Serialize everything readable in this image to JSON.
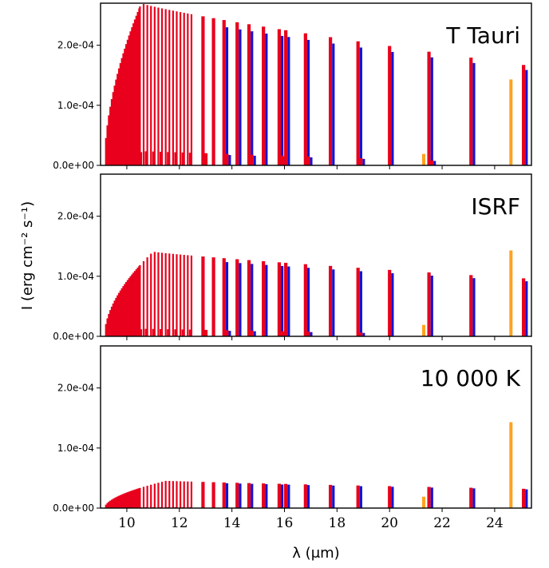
{
  "chart_data": {
    "type": "bar",
    "ylabel": "I (erg cm⁻² s⁻¹)",
    "xlabel": "λ (μm)",
    "xlim": [
      9.0,
      25.4
    ],
    "ylim": [
      0,
      0.00027
    ],
    "xticks": [
      10,
      12,
      14,
      16,
      18,
      20,
      22,
      24
    ],
    "yticks": [
      0,
      0.0001,
      0.0002
    ],
    "ytick_labels": [
      "0.0e+00",
      "1.0e-04",
      "2.0e-04"
    ],
    "series_colors": {
      "red": "#e8001c",
      "blue": "#1414d2",
      "orange": "#ffa21f"
    },
    "panels": [
      {
        "label": "T Tauri",
        "envelope": {
          "peak_x": 10.55,
          "peak": 0.00027,
          "end_x": 25.3,
          "end": 0.000166,
          "start_x": 9.15
        },
        "low": {
          "peak": 2.35e-05,
          "end_x": 24.5,
          "end": 4e-06,
          "span": [
            9.3,
            24.5
          ]
        },
        "blue_frac": 0.95,
        "orange": [
          {
            "x": 21.3,
            "y": 1.9e-05
          },
          {
            "x": 24.62,
            "y": 0.000143
          }
        ]
      },
      {
        "label": "ISRF",
        "envelope": {
          "peak_x": 11.0,
          "peak": 0.000141,
          "end_x": 25.3,
          "end": 9.6e-05,
          "start_x": 9.15
        },
        "low": {
          "peak": 1.25e-05,
          "end_x": 24.5,
          "end": 2e-06,
          "span": [
            9.3,
            21.2
          ]
        },
        "blue_frac": 0.95,
        "orange": [
          {
            "x": 21.3,
            "y": 1.9e-05
          },
          {
            "x": 24.62,
            "y": 0.000143
          }
        ]
      },
      {
        "label": "10 000 K",
        "envelope": {
          "peak_x": 11.5,
          "peak": 4.55e-05,
          "end_x": 25.3,
          "end": 3.2e-05,
          "start_x": 9.15
        },
        "low": {
          "peak": 1.5e-06,
          "end_x": 20.0,
          "end": 8e-07,
          "span": [
            9.3,
            12.5
          ]
        },
        "blue_frac": 0.97,
        "orange": [
          {
            "x": 21.3,
            "y": 1.9e-05
          },
          {
            "x": 24.62,
            "y": 0.000143
          }
        ]
      }
    ]
  }
}
